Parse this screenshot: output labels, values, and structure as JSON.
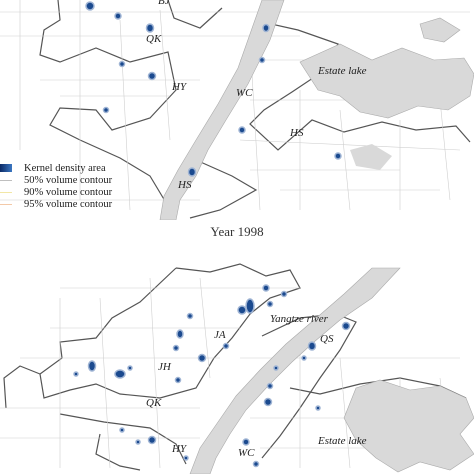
{
  "top_map": {
    "labels": {
      "bj": "BJ",
      "qk": "QK",
      "hy": "HY",
      "wc": "WC",
      "hs1": "HS",
      "hs2": "HS",
      "estate": "Estate lake"
    }
  },
  "legend": {
    "items": [
      {
        "label": "Kernel density area",
        "color": "#1b4a8f"
      },
      {
        "label": "50% volume contour",
        "color": "#bfbfbf"
      },
      {
        "label": "90% volume contour",
        "color": "#f2e7a6"
      },
      {
        "label": "95% volume contour",
        "color": "#f3c9a8"
      }
    ]
  },
  "caption": "Year 1998",
  "bottom_map": {
    "labels": {
      "ja": "JA",
      "yangtze": "Yangtze river",
      "qs": "QS",
      "jh": "JH",
      "qk": "QK",
      "hy": "HY",
      "wc": "WC",
      "estate": "Estate lake"
    }
  },
  "colors": {
    "river": "#d9d9d9",
    "lake": "#d9d9d9",
    "hotspot": "#1b4a8f",
    "boundary": "#555555"
  }
}
